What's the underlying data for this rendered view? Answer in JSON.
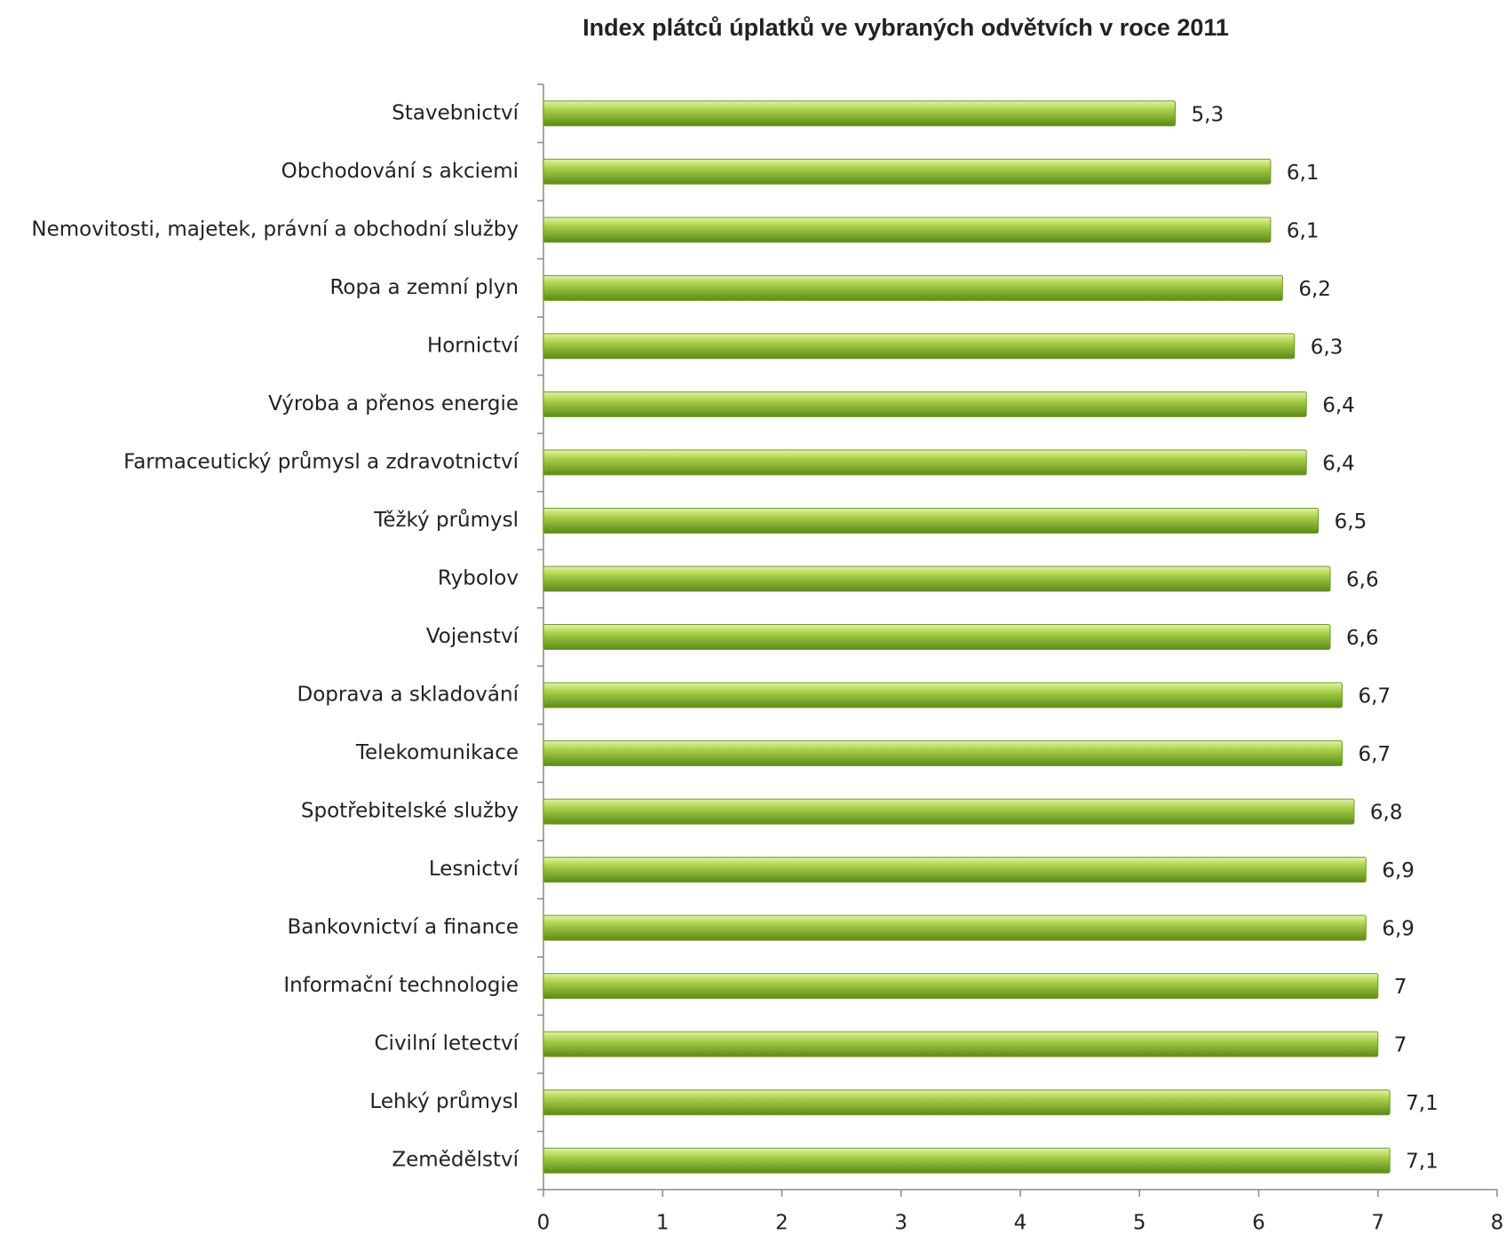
{
  "chart_data": {
    "type": "hbar",
    "title": "Index plátců úplatků ve vybraných odvětvích v roce 2011",
    "categories": [
      "Stavebnictví",
      "Obchodování s akciemi",
      "Nemovitosti,  majetek, právní a obchodní služby",
      "Ropa a zemní plyn",
      "Hornictví",
      "Výroba a přenos energie",
      "Farmaceutický průmysl a zdravotnictví",
      "Těžký průmysl",
      "Rybolov",
      "Vojenství",
      "Doprava a skladování",
      "Telekomunikace",
      "Spotřebitelské služby",
      "Lesnictví",
      "Bankovnictví a finance",
      "Informační technologie",
      "Civilní letectví",
      "Lehký průmysl",
      "Zemědělství"
    ],
    "values": [
      5.3,
      6.1,
      6.1,
      6.2,
      6.3,
      6.4,
      6.4,
      6.5,
      6.6,
      6.6,
      6.7,
      6.7,
      6.8,
      6.9,
      6.9,
      7,
      7,
      7.1,
      7.1
    ],
    "value_labels": [
      "5,3",
      "6,1",
      "6,1",
      "6,2",
      "6,3",
      "6,4",
      "6,4",
      "6,5",
      "6,6",
      "6,6",
      "6,7",
      "6,7",
      "6,8",
      "6,9",
      "6,9",
      "7",
      "7",
      "7,1",
      "7,1"
    ],
    "color": "#9bc43c",
    "xlim": [
      0,
      8
    ],
    "xticks": [
      0,
      1,
      2,
      3,
      4,
      5,
      6,
      7,
      8
    ]
  }
}
